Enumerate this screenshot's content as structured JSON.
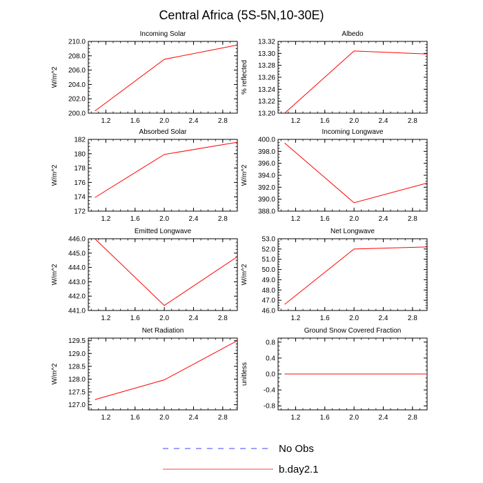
{
  "figure": {
    "title": "Central Africa (5S-5N,10-30E)"
  },
  "legend": {
    "position": "bottom-center",
    "entries": [
      {
        "label": "No Obs",
        "color": "#0000ff",
        "dash": "dashed"
      },
      {
        "label": "b.day2.1",
        "color": "#ff0000",
        "dash": "solid"
      }
    ]
  },
  "chart_data": [
    {
      "type": "line",
      "title": "Incoming Solar",
      "xlabel": "",
      "ylabel": "W/m^2",
      "xlim": [
        0.96,
        3.0
      ],
      "ylim": [
        200.0,
        210.0
      ],
      "xticks": [
        1.2,
        1.6,
        2.0,
        2.4,
        2.8
      ],
      "xtick_labels": [
        "1.2",
        "1.6",
        "2.0",
        "2.4",
        "2.8"
      ],
      "yticks": [
        200.0,
        202.0,
        204.0,
        206.0,
        208.0,
        210.0
      ],
      "ytick_labels": [
        "200.0",
        "202.0",
        "204.0",
        "206.0",
        "208.0",
        "210.0"
      ],
      "series": [
        {
          "name": "b.day2.1",
          "color": "#ff0000",
          "x": [
            1.05,
            2.0,
            3.0
          ],
          "values": [
            200.3,
            207.5,
            209.5
          ]
        }
      ]
    },
    {
      "type": "line",
      "title": "Albedo",
      "xlabel": "",
      "ylabel": "% reflected",
      "xlim": [
        0.96,
        3.0
      ],
      "ylim": [
        13.2,
        13.32
      ],
      "xticks": [
        1.2,
        1.6,
        2.0,
        2.4,
        2.8
      ],
      "xtick_labels": [
        "1.2",
        "1.6",
        "2.0",
        "2.4",
        "2.8"
      ],
      "yticks": [
        13.2,
        13.22,
        13.24,
        13.26,
        13.28,
        13.3,
        13.32
      ],
      "ytick_labels": [
        "13.20",
        "13.22",
        "13.24",
        "13.26",
        "13.28",
        "13.30",
        "13.32"
      ],
      "series": [
        {
          "name": "b.day2.1",
          "color": "#ff0000",
          "x": [
            1.05,
            2.0,
            3.0
          ],
          "values": [
            13.2,
            13.304,
            13.299
          ]
        }
      ]
    },
    {
      "type": "line",
      "title": "Absorbed Solar",
      "xlabel": "",
      "ylabel": "W/m^2",
      "xlim": [
        0.96,
        3.0
      ],
      "ylim": [
        172,
        182
      ],
      "xticks": [
        1.2,
        1.6,
        2.0,
        2.4,
        2.8
      ],
      "xtick_labels": [
        "1.2",
        "1.6",
        "2.0",
        "2.4",
        "2.8"
      ],
      "yticks": [
        172,
        174,
        176,
        178,
        180,
        182
      ],
      "ytick_labels": [
        "172",
        "174",
        "176",
        "178",
        "180",
        "182"
      ],
      "series": [
        {
          "name": "b.day2.1",
          "color": "#ff0000",
          "x": [
            1.05,
            2.0,
            3.0
          ],
          "values": [
            173.9,
            179.9,
            181.6
          ]
        }
      ]
    },
    {
      "type": "line",
      "title": "Incoming Longwave",
      "xlabel": "",
      "ylabel": "W/m^2",
      "xlim": [
        0.96,
        3.0
      ],
      "ylim": [
        388.0,
        400.0
      ],
      "xticks": [
        1.2,
        1.6,
        2.0,
        2.4,
        2.8
      ],
      "xtick_labels": [
        "1.2",
        "1.6",
        "2.0",
        "2.4",
        "2.8"
      ],
      "yticks": [
        388.0,
        390.0,
        392.0,
        394.0,
        396.0,
        398.0,
        400.0
      ],
      "ytick_labels": [
        "388.0",
        "390.0",
        "392.0",
        "394.0",
        "396.0",
        "398.0",
        "400.0"
      ],
      "series": [
        {
          "name": "b.day2.1",
          "color": "#ff0000",
          "x": [
            1.05,
            2.0,
            3.0
          ],
          "values": [
            399.4,
            389.4,
            392.7
          ]
        }
      ]
    },
    {
      "type": "line",
      "title": "Emitted Longwave",
      "xlabel": "",
      "ylabel": "W/m^2",
      "xlim": [
        0.96,
        3.0
      ],
      "ylim": [
        441.0,
        446.0
      ],
      "xticks": [
        1.2,
        1.6,
        2.0,
        2.4,
        2.8
      ],
      "xtick_labels": [
        "1.2",
        "1.6",
        "2.0",
        "2.4",
        "2.8"
      ],
      "yticks": [
        441.0,
        442.0,
        443.0,
        444.0,
        445.0,
        446.0
      ],
      "ytick_labels": [
        "441.0",
        "442.0",
        "443.0",
        "444.0",
        "445.0",
        "446.0"
      ],
      "series": [
        {
          "name": "b.day2.1",
          "color": "#ff0000",
          "x": [
            1.05,
            2.0,
            3.0
          ],
          "values": [
            446.0,
            441.35,
            444.75
          ]
        }
      ]
    },
    {
      "type": "line",
      "title": "Net Longwave",
      "xlabel": "",
      "ylabel": "W/m^2",
      "xlim": [
        0.96,
        3.0
      ],
      "ylim": [
        46.0,
        53.0
      ],
      "xticks": [
        1.2,
        1.6,
        2.0,
        2.4,
        2.8
      ],
      "xtick_labels": [
        "1.2",
        "1.6",
        "2.0",
        "2.4",
        "2.8"
      ],
      "yticks": [
        46.0,
        47.0,
        48.0,
        49.0,
        50.0,
        51.0,
        52.0,
        53.0
      ],
      "ytick_labels": [
        "46.0",
        "47.0",
        "48.0",
        "49.0",
        "50.0",
        "51.0",
        "52.0",
        "53.0"
      ],
      "series": [
        {
          "name": "b.day2.1",
          "color": "#ff0000",
          "x": [
            1.05,
            2.0,
            3.0
          ],
          "values": [
            46.6,
            52.0,
            52.2
          ]
        }
      ]
    },
    {
      "type": "line",
      "title": "Net Radiation",
      "xlabel": "",
      "ylabel": "W/m^2",
      "xlim": [
        0.96,
        3.0
      ],
      "ylim": [
        126.8,
        129.6
      ],
      "xticks": [
        1.2,
        1.6,
        2.0,
        2.4,
        2.8
      ],
      "xtick_labels": [
        "1.2",
        "1.6",
        "2.0",
        "2.4",
        "2.8"
      ],
      "yticks": [
        127.0,
        127.5,
        128.0,
        128.5,
        129.0,
        129.5
      ],
      "ytick_labels": [
        "127.0",
        "127.5",
        "128.0",
        "128.5",
        "129.0",
        "129.5"
      ],
      "series": [
        {
          "name": "b.day2.1",
          "color": "#ff0000",
          "x": [
            1.05,
            2.0,
            3.0
          ],
          "values": [
            127.2,
            127.97,
            129.5
          ]
        }
      ]
    },
    {
      "type": "line",
      "title": "Ground Snow Covered Fraction",
      "xlabel": "",
      "ylabel": "unitless",
      "xlim": [
        0.96,
        3.0
      ],
      "ylim": [
        -0.9,
        0.9
      ],
      "xticks": [
        1.2,
        1.6,
        2.0,
        2.4,
        2.8
      ],
      "xtick_labels": [
        "1.2",
        "1.6",
        "2.0",
        "2.4",
        "2.8"
      ],
      "yticks": [
        -0.8,
        -0.4,
        0.0,
        0.4,
        0.8
      ],
      "ytick_labels": [
        "-0.8",
        "-0.4",
        "0.0",
        "0.4",
        "0.8"
      ],
      "series": [
        {
          "name": "b.day2.1",
          "color": "#ff0000",
          "x": [
            1.05,
            2.0,
            3.0
          ],
          "values": [
            0.0,
            0.0,
            0.0
          ]
        }
      ]
    }
  ]
}
